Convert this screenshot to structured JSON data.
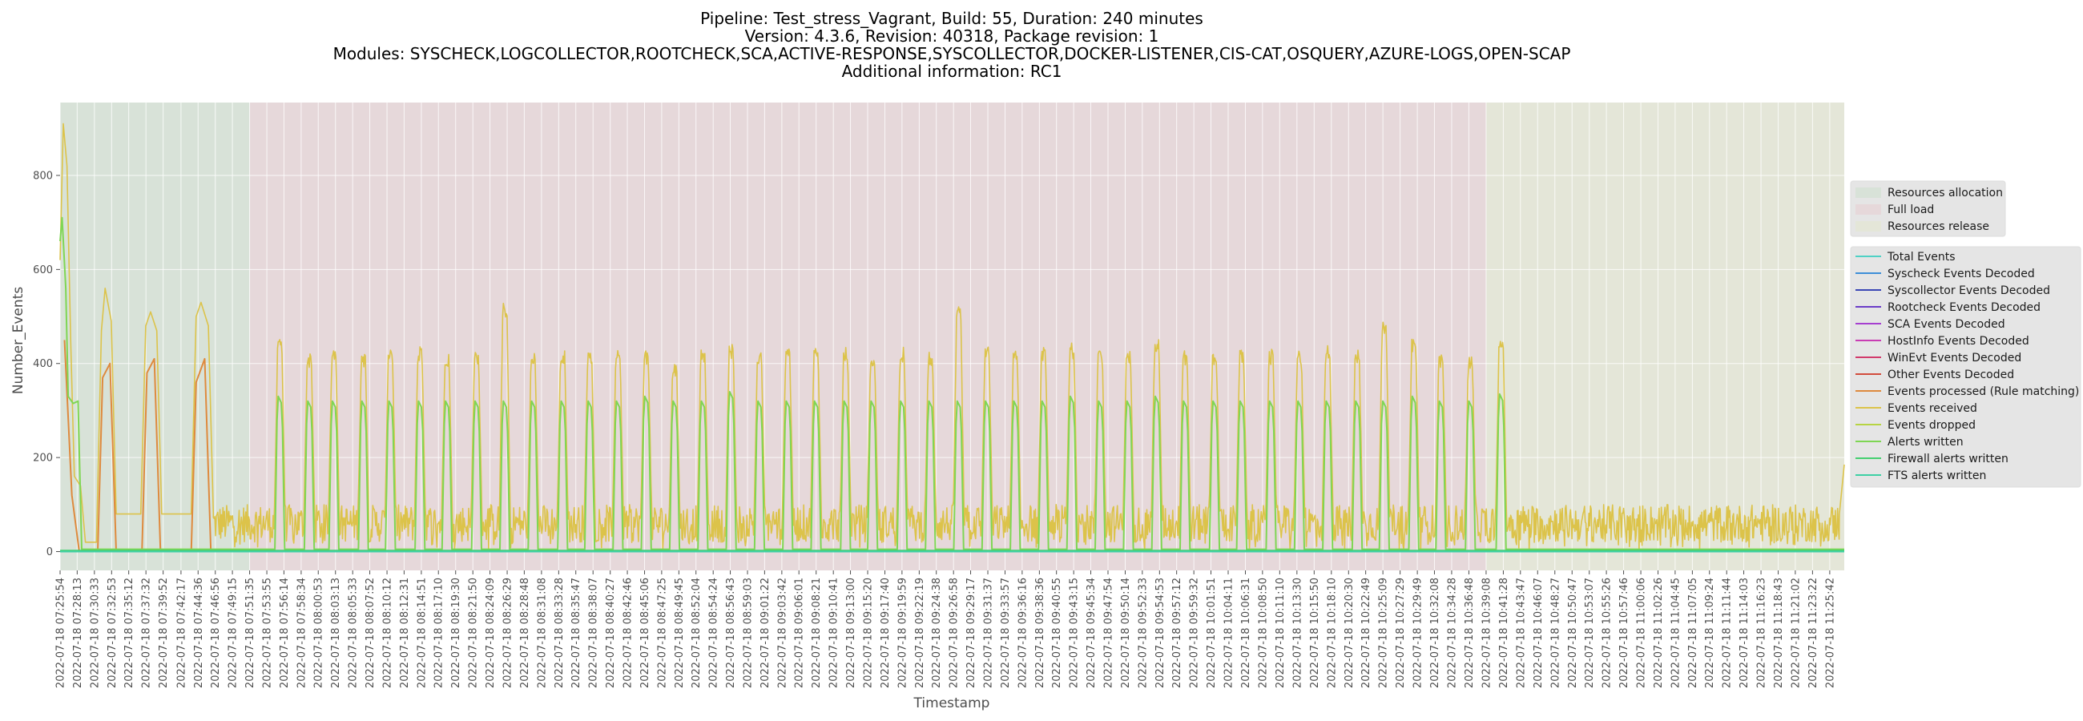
{
  "chart_data": {
    "type": "line",
    "title_lines": [
      "Pipeline: Test_stress_Vagrant, Build: 55, Duration: 240 minutes",
      "Version: 4.3.6, Revision: 40318, Package revision: 1",
      "Modules: SYSCHECK,LOGCOLLECTOR,ROOTCHECK,SCA,ACTIVE-RESPONSE,SYSCOLLECTOR,DOCKER-LISTENER,CIS-CAT,OSQUERY,AZURE-LOGS,OPEN-SCAP",
      "Additional information: RC1"
    ],
    "xlabel": "Timestamp",
    "ylabel": "Number_Events",
    "ylim": [
      -40,
      955
    ],
    "yticks": [
      0,
      200,
      400,
      600,
      800
    ],
    "grid": true,
    "x_start": "2022-07-18 07:25:54",
    "x_end": "2022-07-18 11:27:40",
    "x_ticks": [
      "2022-07-18 07:25:54",
      "2022-07-18 07:28:13",
      "2022-07-18 07:30:33",
      "2022-07-18 07:32:53",
      "2022-07-18 07:35:12",
      "2022-07-18 07:37:32",
      "2022-07-18 07:39:52",
      "2022-07-18 07:42:17",
      "2022-07-18 07:44:36",
      "2022-07-18 07:46:56",
      "2022-07-18 07:49:15",
      "2022-07-18 07:51:35",
      "2022-07-18 07:53:55",
      "2022-07-18 07:56:14",
      "2022-07-18 07:58:34",
      "2022-07-18 08:00:53",
      "2022-07-18 08:03:13",
      "2022-07-18 08:05:33",
      "2022-07-18 08:07:52",
      "2022-07-18 08:10:12",
      "2022-07-18 08:12:31",
      "2022-07-18 08:14:51",
      "2022-07-18 08:17:10",
      "2022-07-18 08:19:30",
      "2022-07-18 08:21:50",
      "2022-07-18 08:24:09",
      "2022-07-18 08:26:29",
      "2022-07-18 08:28:48",
      "2022-07-18 08:31:08",
      "2022-07-18 08:33:28",
      "2022-07-18 08:35:47",
      "2022-07-18 08:38:07",
      "2022-07-18 08:40:27",
      "2022-07-18 08:42:46",
      "2022-07-18 08:45:06",
      "2022-07-18 08:47:25",
      "2022-07-18 08:49:45",
      "2022-07-18 08:52:04",
      "2022-07-18 08:54:24",
      "2022-07-18 08:56:43",
      "2022-07-18 08:59:03",
      "2022-07-18 09:01:22",
      "2022-07-18 09:03:42",
      "2022-07-18 09:06:01",
      "2022-07-18 09:08:21",
      "2022-07-18 09:10:41",
      "2022-07-18 09:13:00",
      "2022-07-18 09:15:20",
      "2022-07-18 09:17:40",
      "2022-07-18 09:19:59",
      "2022-07-18 09:22:19",
      "2022-07-18 09:24:38",
      "2022-07-18 09:26:58",
      "2022-07-18 09:29:17",
      "2022-07-18 09:31:37",
      "2022-07-18 09:33:57",
      "2022-07-18 09:36:16",
      "2022-07-18 09:38:36",
      "2022-07-18 09:40:55",
      "2022-07-18 09:43:15",
      "2022-07-18 09:45:34",
      "2022-07-18 09:47:54",
      "2022-07-18 09:50:14",
      "2022-07-18 09:52:33",
      "2022-07-18 09:54:53",
      "2022-07-18 09:57:12",
      "2022-07-18 09:59:32",
      "2022-07-18 10:01:51",
      "2022-07-18 10:04:11",
      "2022-07-18 10:06:31",
      "2022-07-18 10:08:50",
      "2022-07-18 10:11:10",
      "2022-07-18 10:13:30",
      "2022-07-18 10:15:50",
      "2022-07-18 10:18:10",
      "2022-07-18 10:20:30",
      "2022-07-18 10:22:49",
      "2022-07-18 10:25:09",
      "2022-07-18 10:27:29",
      "2022-07-18 10:29:49",
      "2022-07-18 10:32:08",
      "2022-07-18 10:34:28",
      "2022-07-18 10:36:48",
      "2022-07-18 10:39:08",
      "2022-07-18 10:41:28",
      "2022-07-18 10:43:47",
      "2022-07-18 10:46:07",
      "2022-07-18 10:48:27",
      "2022-07-18 10:50:47",
      "2022-07-18 10:53:07",
      "2022-07-18 10:55:26",
      "2022-07-18 10:57:46",
      "2022-07-18 11:00:06",
      "2022-07-18 11:02:26",
      "2022-07-18 11:04:45",
      "2022-07-18 11:07:05",
      "2022-07-18 11:09:24",
      "2022-07-18 11:11:44",
      "2022-07-18 11:14:03",
      "2022-07-18 11:16:23",
      "2022-07-18 11:18:43",
      "2022-07-18 11:21:02",
      "2022-07-18 11:23:22",
      "2022-07-18 11:25:42"
    ],
    "phases": [
      {
        "name": "Resources allocation",
        "start": "2022-07-18 07:25:54",
        "end": "2022-07-18 07:51:35",
        "color": "#d8e2d8"
      },
      {
        "name": "Full load",
        "start": "2022-07-18 07:51:35",
        "end": "2022-07-18 10:39:08",
        "color": "#e6d8da"
      },
      {
        "name": "Resources release",
        "start": "2022-07-18 10:39:08",
        "end": "2022-07-18 11:27:40",
        "color": "#e4e6d8"
      }
    ],
    "series": [
      {
        "name": "Total Events",
        "color": "#4fd1c5",
        "values": []
      },
      {
        "name": "Syscheck Events Decoded",
        "color": "#3d8ed8",
        "values": []
      },
      {
        "name": "Syscollector Events Decoded",
        "color": "#3a46b5",
        "values": []
      },
      {
        "name": "Rootcheck Events Decoded",
        "color": "#6a3cc8",
        "values": []
      },
      {
        "name": "SCA Events Decoded",
        "color": "#a63fd0",
        "values": []
      },
      {
        "name": "HostInfo Events Decoded",
        "color": "#c93db4",
        "values": []
      },
      {
        "name": "WinEvt Events Decoded",
        "color": "#d23a6c",
        "values": []
      },
      {
        "name": "Other Events Decoded",
        "color": "#d24b3c",
        "values": []
      },
      {
        "name": "Events processed (Rule matching)",
        "color": "#de8a3e",
        "values": [
          {
            "x": "2022-07-18 07:26:30",
            "y": 450
          },
          {
            "x": "2022-07-18 07:27:30",
            "y": 120
          },
          {
            "x": "2022-07-18 07:28:30",
            "y": 0
          },
          {
            "x": "2022-07-18 07:31:00",
            "y": 0
          },
          {
            "x": "2022-07-18 07:31:40",
            "y": 370
          },
          {
            "x": "2022-07-18 07:32:40",
            "y": 400
          },
          {
            "x": "2022-07-18 07:33:30",
            "y": 0
          },
          {
            "x": "2022-07-18 07:37:00",
            "y": 0
          },
          {
            "x": "2022-07-18 07:37:40",
            "y": 380
          },
          {
            "x": "2022-07-18 07:38:40",
            "y": 410
          },
          {
            "x": "2022-07-18 07:39:30",
            "y": 0
          },
          {
            "x": "2022-07-18 07:43:40",
            "y": 0
          },
          {
            "x": "2022-07-18 07:44:20",
            "y": 360
          },
          {
            "x": "2022-07-18 07:45:30",
            "y": 410
          },
          {
            "x": "2022-07-18 07:46:20",
            "y": 0
          },
          {
            "x": "2022-07-18 11:27:40",
            "y": 0
          }
        ]
      },
      {
        "name": "Events received",
        "color": "#dcc34a",
        "values": [
          {
            "x": "2022-07-18 07:25:54",
            "y": 620
          },
          {
            "x": "2022-07-18 07:26:20",
            "y": 910
          },
          {
            "x": "2022-07-18 07:26:50",
            "y": 820
          },
          {
            "x": "2022-07-18 07:27:20",
            "y": 450
          },
          {
            "x": "2022-07-18 07:27:50",
            "y": 160
          },
          {
            "x": "2022-07-18 07:28:40",
            "y": 140
          },
          {
            "x": "2022-07-18 07:29:20",
            "y": 20
          },
          {
            "x": "2022-07-18 07:30:50",
            "y": 20
          },
          {
            "x": "2022-07-18 07:31:30",
            "y": 470
          },
          {
            "x": "2022-07-18 07:32:00",
            "y": 560
          },
          {
            "x": "2022-07-18 07:32:50",
            "y": 490
          },
          {
            "x": "2022-07-18 07:33:30",
            "y": 80
          },
          {
            "x": "2022-07-18 07:36:50",
            "y": 80
          },
          {
            "x": "2022-07-18 07:37:30",
            "y": 480
          },
          {
            "x": "2022-07-18 07:38:10",
            "y": 510
          },
          {
            "x": "2022-07-18 07:39:00",
            "y": 470
          },
          {
            "x": "2022-07-18 07:39:40",
            "y": 80
          },
          {
            "x": "2022-07-18 07:43:40",
            "y": 80
          },
          {
            "x": "2022-07-18 07:44:20",
            "y": 500
          },
          {
            "x": "2022-07-18 07:45:00",
            "y": 530
          },
          {
            "x": "2022-07-18 07:46:00",
            "y": 480
          },
          {
            "x": "2022-07-18 07:46:40",
            "y": 80
          },
          {
            "x": "2022-07-18 11:27:00",
            "y": 80
          },
          {
            "x": "2022-07-18 11:27:40",
            "y": 185
          }
        ],
        "baseline_band": [
          20,
          100
        ],
        "spike_peaks": [
          {
            "x": "2022-07-18 07:55:40",
            "y": 440
          },
          {
            "x": "2022-07-18 07:59:40",
            "y": 410
          },
          {
            "x": "2022-07-18 08:03:00",
            "y": 420
          },
          {
            "x": "2022-07-18 08:07:00",
            "y": 410
          },
          {
            "x": "2022-07-18 08:10:40",
            "y": 420
          },
          {
            "x": "2022-07-18 08:14:40",
            "y": 420
          },
          {
            "x": "2022-07-18 08:18:20",
            "y": 410
          },
          {
            "x": "2022-07-18 08:22:20",
            "y": 415
          },
          {
            "x": "2022-07-18 08:26:10",
            "y": 515
          },
          {
            "x": "2022-07-18 08:30:00",
            "y": 410
          },
          {
            "x": "2022-07-18 08:34:00",
            "y": 415
          },
          {
            "x": "2022-07-18 08:37:40",
            "y": 410
          },
          {
            "x": "2022-07-18 08:41:30",
            "y": 420
          },
          {
            "x": "2022-07-18 08:45:20",
            "y": 415
          },
          {
            "x": "2022-07-18 08:49:10",
            "y": 385
          },
          {
            "x": "2022-07-18 08:53:00",
            "y": 415
          },
          {
            "x": "2022-07-18 08:56:50",
            "y": 425
          },
          {
            "x": "2022-07-18 09:00:40",
            "y": 410
          },
          {
            "x": "2022-07-18 09:04:30",
            "y": 420
          },
          {
            "x": "2022-07-18 09:08:20",
            "y": 420
          },
          {
            "x": "2022-07-18 09:12:20",
            "y": 415
          },
          {
            "x": "2022-07-18 09:16:00",
            "y": 410
          },
          {
            "x": "2022-07-18 09:20:00",
            "y": 420
          },
          {
            "x": "2022-07-18 09:23:50",
            "y": 410
          },
          {
            "x": "2022-07-18 09:27:40",
            "y": 505
          },
          {
            "x": "2022-07-18 09:31:30",
            "y": 420
          },
          {
            "x": "2022-07-18 09:35:20",
            "y": 410
          },
          {
            "x": "2022-07-18 09:39:10",
            "y": 415
          },
          {
            "x": "2022-07-18 09:43:00",
            "y": 425
          },
          {
            "x": "2022-07-18 09:46:50",
            "y": 420
          },
          {
            "x": "2022-07-18 09:50:40",
            "y": 415
          },
          {
            "x": "2022-07-18 09:54:30",
            "y": 440
          },
          {
            "x": "2022-07-18 09:58:20",
            "y": 410
          },
          {
            "x": "2022-07-18 10:02:20",
            "y": 405
          },
          {
            "x": "2022-07-18 10:06:00",
            "y": 415
          },
          {
            "x": "2022-07-18 10:10:00",
            "y": 415
          },
          {
            "x": "2022-07-18 10:13:50",
            "y": 410
          },
          {
            "x": "2022-07-18 10:17:40",
            "y": 420
          },
          {
            "x": "2022-07-18 10:21:40",
            "y": 415
          },
          {
            "x": "2022-07-18 10:25:20",
            "y": 475
          },
          {
            "x": "2022-07-18 10:29:20",
            "y": 440
          },
          {
            "x": "2022-07-18 10:33:00",
            "y": 410
          },
          {
            "x": "2022-07-18 10:37:00",
            "y": 400
          },
          {
            "x": "2022-07-18 10:41:10",
            "y": 440
          }
        ]
      },
      {
        "name": "Events dropped",
        "color": "#b7d443",
        "values": [
          {
            "x": "2022-07-18 07:25:54",
            "y": 0
          },
          {
            "x": "2022-07-18 11:27:40",
            "y": 0
          }
        ]
      },
      {
        "name": "Alerts written",
        "color": "#7fd654",
        "values": [
          {
            "x": "2022-07-18 07:25:54",
            "y": 660
          },
          {
            "x": "2022-07-18 07:26:10",
            "y": 710
          },
          {
            "x": "2022-07-18 07:26:40",
            "y": 560
          },
          {
            "x": "2022-07-18 07:27:00",
            "y": 330
          },
          {
            "x": "2022-07-18 07:27:40",
            "y": 315
          },
          {
            "x": "2022-07-18 07:28:20",
            "y": 320
          },
          {
            "x": "2022-07-18 07:28:50",
            "y": 5
          },
          {
            "x": "2022-07-18 11:27:40",
            "y": 5
          }
        ],
        "spike_peaks": [
          {
            "x": "2022-07-18 07:55:40",
            "y": 330
          },
          {
            "x": "2022-07-18 07:59:40",
            "y": 320
          },
          {
            "x": "2022-07-18 08:03:00",
            "y": 320
          },
          {
            "x": "2022-07-18 08:07:00",
            "y": 320
          },
          {
            "x": "2022-07-18 08:10:40",
            "y": 320
          },
          {
            "x": "2022-07-18 08:14:40",
            "y": 320
          },
          {
            "x": "2022-07-18 08:18:20",
            "y": 320
          },
          {
            "x": "2022-07-18 08:22:20",
            "y": 320
          },
          {
            "x": "2022-07-18 08:26:10",
            "y": 320
          },
          {
            "x": "2022-07-18 08:30:00",
            "y": 320
          },
          {
            "x": "2022-07-18 08:34:00",
            "y": 320
          },
          {
            "x": "2022-07-18 08:37:40",
            "y": 320
          },
          {
            "x": "2022-07-18 08:41:30",
            "y": 320
          },
          {
            "x": "2022-07-18 08:45:20",
            "y": 330
          },
          {
            "x": "2022-07-18 08:49:10",
            "y": 320
          },
          {
            "x": "2022-07-18 08:53:00",
            "y": 320
          },
          {
            "x": "2022-07-18 08:56:50",
            "y": 340
          },
          {
            "x": "2022-07-18 09:00:40",
            "y": 320
          },
          {
            "x": "2022-07-18 09:04:30",
            "y": 320
          },
          {
            "x": "2022-07-18 09:08:20",
            "y": 320
          },
          {
            "x": "2022-07-18 09:12:20",
            "y": 320
          },
          {
            "x": "2022-07-18 09:16:00",
            "y": 320
          },
          {
            "x": "2022-07-18 09:20:00",
            "y": 320
          },
          {
            "x": "2022-07-18 09:23:50",
            "y": 320
          },
          {
            "x": "2022-07-18 09:27:40",
            "y": 320
          },
          {
            "x": "2022-07-18 09:31:30",
            "y": 320
          },
          {
            "x": "2022-07-18 09:35:20",
            "y": 320
          },
          {
            "x": "2022-07-18 09:39:10",
            "y": 320
          },
          {
            "x": "2022-07-18 09:43:00",
            "y": 330
          },
          {
            "x": "2022-07-18 09:46:50",
            "y": 320
          },
          {
            "x": "2022-07-18 09:50:40",
            "y": 320
          },
          {
            "x": "2022-07-18 09:54:30",
            "y": 330
          },
          {
            "x": "2022-07-18 09:58:20",
            "y": 320
          },
          {
            "x": "2022-07-18 10:02:20",
            "y": 320
          },
          {
            "x": "2022-07-18 10:06:00",
            "y": 320
          },
          {
            "x": "2022-07-18 10:10:00",
            "y": 320
          },
          {
            "x": "2022-07-18 10:13:50",
            "y": 320
          },
          {
            "x": "2022-07-18 10:17:40",
            "y": 320
          },
          {
            "x": "2022-07-18 10:21:40",
            "y": 320
          },
          {
            "x": "2022-07-18 10:25:20",
            "y": 320
          },
          {
            "x": "2022-07-18 10:29:20",
            "y": 330
          },
          {
            "x": "2022-07-18 10:33:00",
            "y": 320
          },
          {
            "x": "2022-07-18 10:37:00",
            "y": 320
          },
          {
            "x": "2022-07-18 10:41:10",
            "y": 335
          }
        ]
      },
      {
        "name": "Firewall alerts written",
        "color": "#45cf70",
        "values": [
          {
            "x": "2022-07-18 07:25:54",
            "y": 2
          },
          {
            "x": "2022-07-18 11:27:40",
            "y": 2
          }
        ]
      },
      {
        "name": "FTS alerts written",
        "color": "#3ed0a4",
        "values": [
          {
            "x": "2022-07-18 07:25:54",
            "y": 0
          },
          {
            "x": "2022-07-18 11:27:40",
            "y": 0
          }
        ]
      }
    ],
    "legend": {
      "phases_position": "right",
      "series_position": "right"
    }
  }
}
